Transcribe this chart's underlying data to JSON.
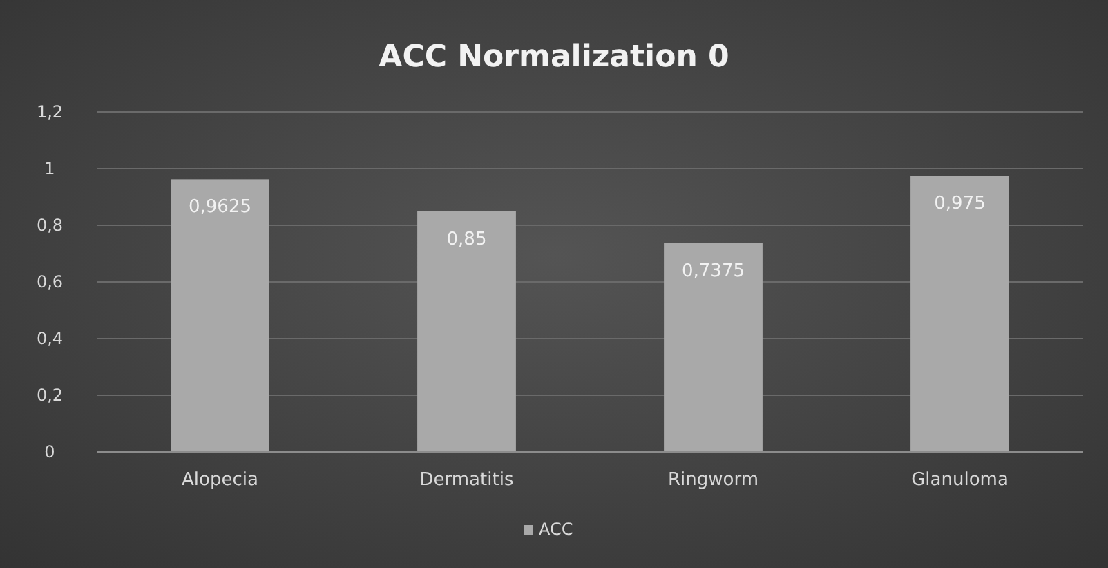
{
  "chart_data": {
    "type": "bar",
    "title": "ACC Normalization 0",
    "categories": [
      "Alopecia",
      "Dermatitis",
      "Ringworm",
      "Glanuloma"
    ],
    "series": [
      {
        "name": "ACC",
        "color": "#a9a9a9",
        "values": [
          0.9625,
          0.85,
          0.7375,
          0.975
        ],
        "value_labels": [
          "0,9625",
          "0,85",
          "0,7375",
          "0,975"
        ]
      }
    ],
    "ylim": [
      0,
      1.2
    ],
    "yticks": [
      {
        "value": 0,
        "label": "0"
      },
      {
        "value": 0.2,
        "label": "0,2"
      },
      {
        "value": 0.4,
        "label": "0,4"
      },
      {
        "value": 0.6,
        "label": "0,6"
      },
      {
        "value": 0.8,
        "label": "0,8"
      },
      {
        "value": 1,
        "label": "1"
      },
      {
        "value": 1.2,
        "label": "1,2"
      }
    ],
    "grid": "y",
    "legend": "bottom"
  }
}
